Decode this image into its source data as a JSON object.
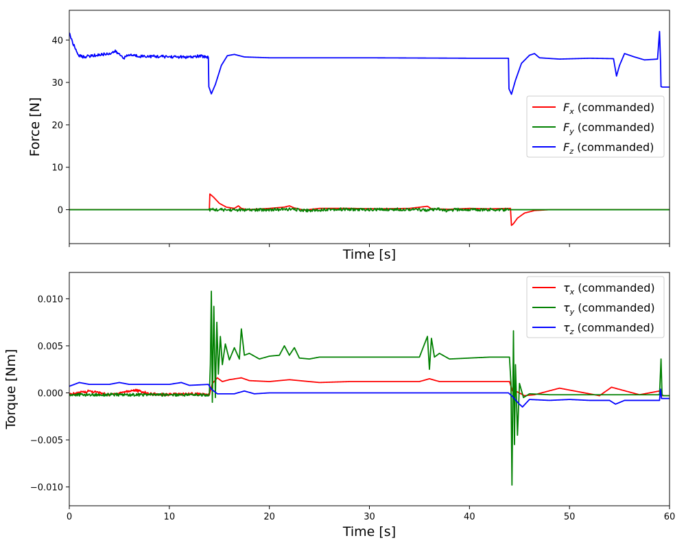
{
  "chart_data": [
    {
      "type": "line",
      "title": "",
      "xlabel": "Time [s]",
      "ylabel": "Force [N]",
      "xlim": [
        0,
        60
      ],
      "ylim": [
        -8,
        47
      ],
      "xticks": [
        0,
        10,
        20,
        30,
        40,
        50,
        60
      ],
      "xtick_labels_visible": false,
      "yticks": [
        0,
        10,
        20,
        30,
        40
      ],
      "ytick_labels": [
        "0",
        "10",
        "20",
        "30",
        "40"
      ],
      "grid": false,
      "legend": {
        "placement": "center-right",
        "entries": [
          {
            "base": "F",
            "sub": "x",
            "suffix": " (commanded)"
          },
          {
            "base": "F",
            "sub": "y",
            "suffix": " (commanded)"
          },
          {
            "base": "F",
            "sub": "z",
            "suffix": " (commanded)"
          }
        ]
      },
      "series": [
        {
          "name": "Fx (commanded)",
          "color": "#ff0000",
          "x": [
            0,
            14.0,
            14.05,
            14.4,
            15.0,
            15.7,
            16.5,
            16.9,
            17.2,
            17.8,
            18.5,
            20,
            21.5,
            22,
            22.5,
            23.5,
            25,
            28,
            31,
            34,
            35.8,
            36.2,
            38,
            40,
            42,
            44.1,
            44.2,
            44.4,
            44.8,
            45.5,
            46.5,
            48,
            50,
            55,
            60
          ],
          "y": [
            0,
            0,
            3.7,
            3.0,
            1.5,
            0.6,
            0.3,
            0.9,
            0.3,
            0.0,
            0.1,
            0.3,
            0.6,
            0.9,
            0.4,
            -0.1,
            0.3,
            0.3,
            0.2,
            0.3,
            0.8,
            0.2,
            0.1,
            0.3,
            0.2,
            0.3,
            -3.7,
            -3.3,
            -2.0,
            -0.8,
            -0.2,
            0,
            0,
            0,
            0
          ]
        },
        {
          "name": "Fy (commanded)",
          "color": "#008000",
          "x": [
            0,
            14,
            18,
            22,
            24,
            26,
            30,
            34,
            36,
            37,
            37.8,
            38.5,
            44,
            60
          ],
          "y": [
            0,
            0,
            -0.1,
            0.1,
            -0.2,
            0.1,
            0.0,
            0.1,
            -0.1,
            0.1,
            -0.3,
            0.0,
            0,
            0
          ],
          "noise_amplitude_range": [
            14,
            44
          ]
        },
        {
          "name": "Fz (commanded)",
          "color": "#0000ff",
          "x": [
            0,
            0.1,
            0.3,
            0.6,
            0.9,
            1.3,
            2,
            3,
            4,
            4.6,
            5,
            5.5,
            6,
            7,
            9,
            11,
            12,
            13,
            13.9,
            13.95,
            14.2,
            14.6,
            15.2,
            15.8,
            16.5,
            17.5,
            20,
            30,
            40,
            43.9,
            43.95,
            44.2,
            44.6,
            45.2,
            46,
            46.5,
            47,
            49,
            52,
            54.4,
            54.7,
            55,
            55.5,
            56.5,
            57.5,
            58.8,
            59.0,
            59.1,
            59.15,
            59.3,
            60
          ],
          "y": [
            41.8,
            41.0,
            39.5,
            38.0,
            36.5,
            36.0,
            36.2,
            36.5,
            36.8,
            37.3,
            36.6,
            35.8,
            36.5,
            36.2,
            36.1,
            36.0,
            35.9,
            36.2,
            36.0,
            29.0,
            27.3,
            29.5,
            34.0,
            36.3,
            36.6,
            36.0,
            35.8,
            35.8,
            35.7,
            35.7,
            28.5,
            27.2,
            30.5,
            34.5,
            36.4,
            36.8,
            35.8,
            35.5,
            35.7,
            35.6,
            31.5,
            34.0,
            36.8,
            36.0,
            35.3,
            35.5,
            42.0,
            35.0,
            29.0,
            28.9,
            28.9
          ],
          "noise_amplitude_range": [
            0,
            14
          ]
        }
      ]
    },
    {
      "type": "line",
      "title": "",
      "xlabel": "Time [s]",
      "ylabel": "Torque [Nm]",
      "xlim": [
        0,
        60
      ],
      "ylim": [
        -0.012,
        0.0128
      ],
      "xticks": [
        0,
        10,
        20,
        30,
        40,
        50,
        60
      ],
      "xtick_labels": [
        "0",
        "10",
        "20",
        "30",
        "40",
        "50",
        "60"
      ],
      "yticks": [
        -0.01,
        -0.005,
        0.0,
        0.005,
        0.01
      ],
      "ytick_labels": [
        "−0.010",
        "−0.005",
        "0.000",
        "0.005",
        "0.010"
      ],
      "grid": false,
      "legend": {
        "placement": "upper-right",
        "entries": [
          {
            "base": "τ",
            "sub": "x",
            "suffix": " (commanded)"
          },
          {
            "base": "τ",
            "sub": "y",
            "suffix": " (commanded)"
          },
          {
            "base": "τ",
            "sub": "z",
            "suffix": " (commanded)"
          }
        ]
      },
      "series": [
        {
          "name": "τx (commanded)",
          "color": "#ff0000",
          "x": [
            0,
            2,
            4,
            6.5,
            8,
            10,
            12,
            14,
            14.3,
            14.8,
            15.3,
            16,
            17.2,
            18,
            20,
            22,
            25,
            28,
            32,
            35,
            36,
            37,
            40,
            43,
            44,
            44.3,
            44.8,
            45.5,
            46.5,
            49,
            53,
            54.2,
            57,
            59,
            59.2,
            60
          ],
          "y": [
            -0.0002,
            0.0002,
            -0.0002,
            0.0003,
            -0.0001,
            -0.0002,
            -0.0001,
            -0.0002,
            0.001,
            0.0016,
            0.0012,
            0.0014,
            0.0016,
            0.0013,
            0.0012,
            0.0014,
            0.0011,
            0.0012,
            0.0012,
            0.0012,
            0.0015,
            0.0012,
            0.0012,
            0.0012,
            0.0012,
            0.0002,
            0.0001,
            -0.0003,
            -0.0002,
            0.0005,
            -0.0003,
            0.0006,
            -0.0002,
            0.0002,
            -0.0003,
            -0.0003
          ],
          "noise_amplitude_range": [
            0,
            14
          ]
        },
        {
          "name": "τy (commanded)",
          "color": "#008000",
          "x": [
            0,
            14,
            14.1,
            14.2,
            14.3,
            14.45,
            14.6,
            14.75,
            14.9,
            15.1,
            15.3,
            15.6,
            16,
            16.5,
            17,
            17.2,
            17.5,
            18,
            19,
            20,
            21,
            21.5,
            22,
            22.5,
            23,
            24,
            25,
            30,
            35,
            35.8,
            36.0,
            36.2,
            36.5,
            37,
            38,
            42,
            44,
            44.15,
            44.25,
            44.4,
            44.5,
            44.6,
            44.8,
            45,
            45.4,
            46,
            48,
            52,
            56,
            59,
            59.15,
            59.25,
            59.4,
            60
          ],
          "y": [
            -0.0002,
            -0.0002,
            0.003,
            0.0108,
            -0.001,
            0.0092,
            -0.0005,
            0.0075,
            0.002,
            0.006,
            0.003,
            0.0052,
            0.0035,
            0.0048,
            0.0036,
            0.0068,
            0.004,
            0.0042,
            0.0036,
            0.0039,
            0.004,
            0.005,
            0.004,
            0.0048,
            0.0037,
            0.0036,
            0.0038,
            0.0038,
            0.0038,
            0.006,
            0.0025,
            0.0058,
            0.0038,
            0.0042,
            0.0036,
            0.0038,
            0.0038,
            0.001,
            -0.0098,
            0.0066,
            -0.0055,
            0.003,
            -0.0045,
            0.001,
            -0.0005,
            -0.0001,
            -0.0002,
            -0.0002,
            -0.0002,
            -0.0002,
            0.0036,
            -0.0002,
            -0.0003,
            -0.0003
          ],
          "noise_amplitude_range": [
            0,
            14
          ]
        },
        {
          "name": "τz (commanded)",
          "color": "#0000ff",
          "x": [
            0,
            0.5,
            1,
            2,
            4,
            5,
            6,
            8,
            10,
            11.2,
            12,
            13.9,
            14.2,
            14.8,
            15.5,
            16.5,
            17.5,
            18.5,
            20,
            30,
            40,
            43.9,
            44.3,
            44.9,
            45.3,
            46,
            48,
            50,
            52,
            54,
            54.6,
            55.5,
            58,
            59.0,
            59.1,
            59.2,
            60
          ],
          "y": [
            0.0007,
            0.0009,
            0.0011,
            0.0009,
            0.0009,
            0.0011,
            0.0009,
            0.0009,
            0.0009,
            0.0011,
            0.0008,
            0.0009,
            0.0004,
            -0.0001,
            -0.0001,
            -0.0001,
            0.0002,
            -0.0001,
            0.0,
            0.0,
            0.0,
            0.0,
            -0.0004,
            -0.0011,
            -0.0015,
            -0.0007,
            -0.0008,
            -0.0007,
            -0.0008,
            -0.0008,
            -0.0012,
            -0.0008,
            -0.0008,
            -0.0008,
            0.0004,
            -0.0006,
            -0.0006
          ]
        }
      ]
    }
  ]
}
